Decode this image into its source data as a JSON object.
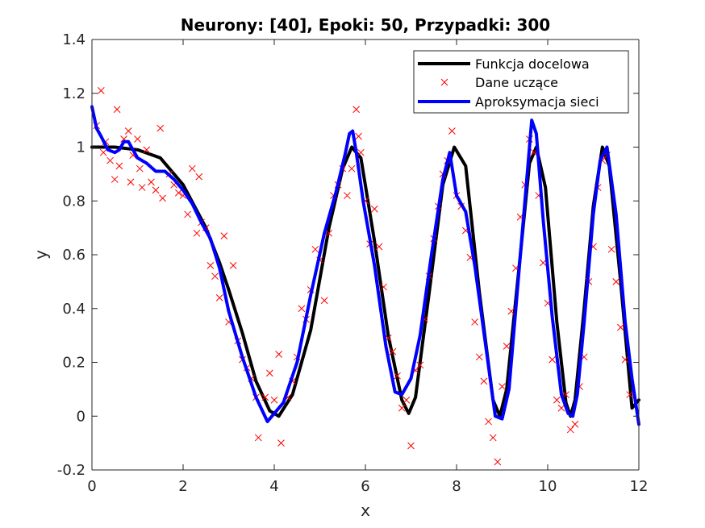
{
  "chart_data": {
    "type": "line",
    "title": "Neurony: [40], Epoki: 50, Przypadki: 300",
    "xlabel": "x",
    "ylabel": "y",
    "xlim": [
      0,
      12
    ],
    "ylim": [
      -0.2,
      1.4
    ],
    "x_ticks": [
      0,
      2,
      4,
      6,
      8,
      10,
      12
    ],
    "y_ticks": [
      -0.2,
      0,
      0.2,
      0.4,
      0.6,
      0.8,
      1,
      1.2,
      1.4
    ],
    "x_tick_labels": [
      "0",
      "2",
      "4",
      "6",
      "8",
      "10",
      "12"
    ],
    "y_tick_labels": [
      "-0.2",
      "0",
      "0.2",
      "0.4",
      "0.6",
      "0.8",
      "1",
      "1.2",
      "1.4"
    ],
    "grid": false,
    "legend_position": "top-right",
    "series": [
      {
        "name": "Funkcja docelowa",
        "kind": "line",
        "color": "#000000",
        "x": [
          0,
          0.5,
          1.0,
          1.5,
          2.0,
          2.5,
          2.8,
          3.0,
          3.3,
          3.6,
          3.9,
          4.1,
          4.4,
          4.8,
          5.2,
          5.5,
          5.7,
          5.9,
          6.2,
          6.5,
          6.8,
          6.95,
          7.1,
          7.4,
          7.7,
          7.95,
          8.2,
          8.5,
          8.8,
          8.95,
          9.1,
          9.4,
          9.6,
          9.75,
          9.95,
          10.2,
          10.4,
          10.5,
          10.6,
          10.8,
          11.0,
          11.2,
          11.35,
          11.6,
          11.85,
          12.0
        ],
        "y": [
          1.0,
          1.0,
          0.99,
          0.96,
          0.86,
          0.7,
          0.57,
          0.47,
          0.31,
          0.13,
          0.02,
          0.0,
          0.08,
          0.32,
          0.7,
          0.92,
          1.0,
          0.96,
          0.65,
          0.3,
          0.06,
          0.01,
          0.07,
          0.46,
          0.86,
          1.0,
          0.93,
          0.46,
          0.06,
          0.0,
          0.1,
          0.6,
          0.94,
          1.0,
          0.85,
          0.35,
          0.05,
          0.0,
          0.06,
          0.4,
          0.78,
          1.0,
          0.93,
          0.5,
          0.03,
          0.06
        ]
      },
      {
        "name": "Dane uczące",
        "kind": "scatter",
        "color": "#ff0000",
        "x": [
          0.1,
          0.2,
          0.25,
          0.3,
          0.4,
          0.5,
          0.55,
          0.6,
          0.7,
          0.8,
          0.85,
          0.9,
          1.0,
          1.05,
          1.1,
          1.2,
          1.3,
          1.4,
          1.5,
          1.55,
          1.7,
          1.8,
          1.9,
          2.0,
          2.1,
          2.2,
          2.3,
          2.35,
          2.4,
          2.5,
          2.6,
          2.7,
          2.8,
          2.9,
          3.0,
          3.1,
          3.2,
          3.3,
          3.4,
          3.5,
          3.6,
          3.65,
          3.8,
          3.9,
          4.0,
          4.1,
          4.15,
          4.3,
          4.4,
          4.5,
          4.6,
          4.7,
          4.8,
          4.9,
          5.0,
          5.1,
          5.2,
          5.3,
          5.4,
          5.5,
          5.6,
          5.7,
          5.8,
          5.85,
          5.9,
          6.0,
          6.1,
          6.2,
          6.3,
          6.4,
          6.5,
          6.6,
          6.7,
          6.8,
          6.9,
          7.0,
          7.1,
          7.2,
          7.3,
          7.4,
          7.5,
          7.6,
          7.7,
          7.8,
          7.9,
          8.0,
          8.1,
          8.2,
          8.3,
          8.4,
          8.5,
          8.6,
          8.7,
          8.8,
          8.9,
          9.0,
          9.1,
          9.2,
          9.3,
          9.4,
          9.5,
          9.6,
          9.7,
          9.8,
          9.9,
          10.0,
          10.1,
          10.2,
          10.3,
          10.4,
          10.5,
          10.6,
          10.7,
          10.8,
          10.9,
          11.0,
          11.1,
          11.2,
          11.3,
          11.4,
          11.5,
          11.6,
          11.7,
          11.8
        ],
        "y": [
          1.08,
          1.21,
          0.98,
          1.02,
          0.95,
          0.88,
          1.14,
          0.93,
          1.03,
          1.06,
          0.87,
          0.97,
          1.03,
          0.92,
          0.85,
          0.99,
          0.87,
          0.84,
          1.07,
          0.81,
          0.9,
          0.86,
          0.83,
          0.82,
          0.75,
          0.92,
          0.68,
          0.89,
          0.72,
          0.7,
          0.56,
          0.52,
          0.44,
          0.67,
          0.35,
          0.56,
          0.28,
          0.21,
          0.18,
          0.14,
          0.07,
          -0.08,
          0.07,
          0.16,
          0.06,
          0.23,
          -0.1,
          0.07,
          0.13,
          0.22,
          0.4,
          0.36,
          0.47,
          0.62,
          0.58,
          0.43,
          0.68,
          0.82,
          0.86,
          0.92,
          0.82,
          0.92,
          1.14,
          1.04,
          0.98,
          0.8,
          0.64,
          0.77,
          0.63,
          0.48,
          0.29,
          0.24,
          0.15,
          0.03,
          0.06,
          -0.11,
          0.17,
          0.19,
          0.36,
          0.52,
          0.66,
          0.78,
          0.9,
          0.95,
          1.06,
          0.82,
          0.78,
          0.69,
          0.59,
          0.35,
          0.22,
          0.13,
          -0.02,
          -0.08,
          -0.17,
          0.11,
          0.26,
          0.39,
          0.55,
          0.74,
          0.86,
          1.03,
          0.98,
          0.82,
          0.57,
          0.42,
          0.21,
          0.06,
          0.03,
          0.08,
          -0.05,
          -0.03,
          0.11,
          0.22,
          0.5,
          0.63,
          0.85,
          0.95,
          0.97,
          0.62,
          0.5,
          0.33,
          0.21,
          0.08
        ]
      },
      {
        "name": "Aproksymacja sieci",
        "kind": "line",
        "color": "#0000ff",
        "x": [
          0,
          0.1,
          0.2,
          0.35,
          0.5,
          0.6,
          0.7,
          0.8,
          0.9,
          1.0,
          1.2,
          1.4,
          1.6,
          1.8,
          2.0,
          2.2,
          2.4,
          2.6,
          2.8,
          3.0,
          3.3,
          3.6,
          3.85,
          4.0,
          4.2,
          4.5,
          4.8,
          5.1,
          5.35,
          5.55,
          5.65,
          5.72,
          5.8,
          5.95,
          6.2,
          6.45,
          6.65,
          6.8,
          7.0,
          7.2,
          7.45,
          7.7,
          7.85,
          8.0,
          8.2,
          8.4,
          8.65,
          8.85,
          9.0,
          9.15,
          9.35,
          9.55,
          9.65,
          9.75,
          9.9,
          10.1,
          10.3,
          10.45,
          10.55,
          10.65,
          10.8,
          11.0,
          11.15,
          11.3,
          11.5,
          11.7,
          11.85,
          12.0
        ],
        "y": [
          1.15,
          1.07,
          1.04,
          0.99,
          0.98,
          0.99,
          1.02,
          1.02,
          0.99,
          0.96,
          0.94,
          0.91,
          0.91,
          0.88,
          0.84,
          0.79,
          0.72,
          0.66,
          0.55,
          0.39,
          0.22,
          0.07,
          -0.02,
          0.01,
          0.05,
          0.2,
          0.45,
          0.68,
          0.83,
          0.97,
          1.05,
          1.06,
          0.98,
          0.8,
          0.56,
          0.26,
          0.09,
          0.08,
          0.14,
          0.3,
          0.6,
          0.88,
          0.98,
          0.82,
          0.76,
          0.56,
          0.25,
          0.0,
          -0.01,
          0.1,
          0.5,
          0.9,
          1.1,
          1.05,
          0.73,
          0.37,
          0.08,
          0.01,
          0.0,
          0.08,
          0.35,
          0.75,
          0.95,
          1.0,
          0.75,
          0.35,
          0.14,
          -0.03
        ]
      }
    ]
  }
}
